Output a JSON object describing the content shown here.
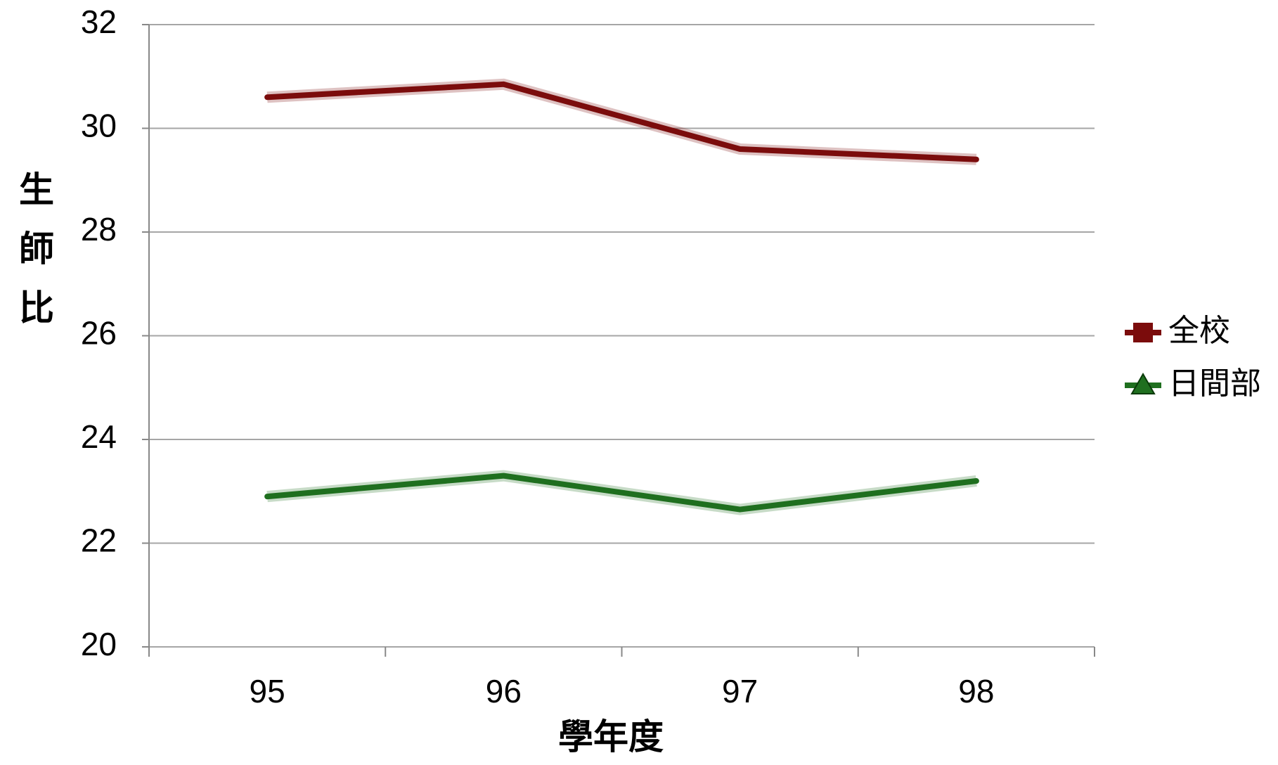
{
  "chart_data": {
    "type": "line",
    "categories": [
      "95",
      "96",
      "97",
      "98"
    ],
    "series": [
      {
        "name": "全校",
        "color": "#7b0c0c",
        "marker": "square",
        "values": [
          30.6,
          30.85,
          29.6,
          29.4
        ]
      },
      {
        "name": "日間部",
        "color": "#1f6f1f",
        "marker": "triangle",
        "values": [
          22.9,
          23.3,
          22.65,
          23.2
        ]
      }
    ],
    "ylabel": "生師比",
    "xlabel": "學年度",
    "ylim": [
      20,
      32
    ],
    "yticks": [
      20,
      22,
      24,
      26,
      28,
      30,
      32
    ],
    "grid": true,
    "legend": "right"
  }
}
